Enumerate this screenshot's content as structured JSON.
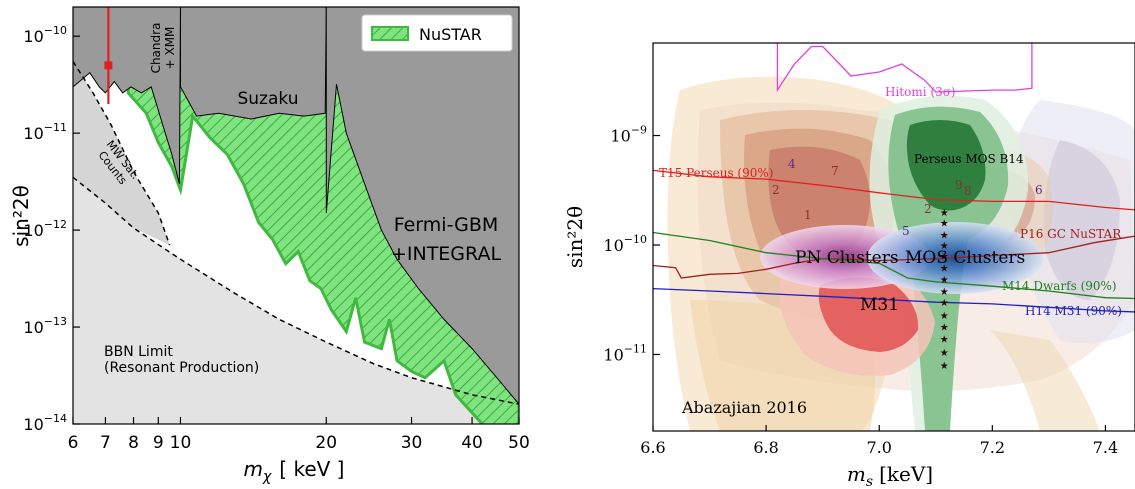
{
  "chart_data": [
    {
      "type": "area",
      "xscale": "log",
      "yscale": "log",
      "xlim": [
        6,
        50
      ],
      "ylim": [
        1e-14,
        2e-10
      ],
      "xlabel_symbol": "m",
      "xlabel_sub": "χ",
      "xlabel_unit": "[ keV ]",
      "ylabel": "sin²2θ",
      "x_ticks": [
        6,
        7,
        8,
        9,
        10,
        20,
        30,
        40,
        50
      ],
      "x_tick_labels": [
        "6",
        "7",
        "8",
        "9",
        "10",
        "20",
        "30",
        "40",
        "50"
      ],
      "y_ticks": [
        1e-14,
        1e-13,
        1e-12,
        1e-11,
        1e-10
      ],
      "y_tick_exps": [
        "−14",
        "−13",
        "−12",
        "−11",
        "−10"
      ],
      "y_tick_base": "10",
      "legend": [
        {
          "name": "NuSTAR",
          "color": "#7fe47f",
          "hatch": true
        }
      ],
      "legend_position": "top-right",
      "region_labels": {
        "suzaku": "Suzaku",
        "fermi_line1": "Fermi-GBM",
        "fermi_line2": "+INTEGRAL",
        "chandra_line1": "Chandra",
        "chandra_line2": "+ XMM",
        "mw_line1": "MW Sat.",
        "mw_line2": "Counts",
        "bbn_line1": "BBN Limit",
        "bbn_line2": "(Resonant Production)"
      },
      "xray_excluded_boundary": [
        [
          6,
          3e-11
        ],
        [
          6.5,
          4.2e-11
        ],
        [
          6.8,
          3e-11
        ],
        [
          7.0,
          2.6e-11
        ],
        [
          7.3,
          3.4e-11
        ],
        [
          7.6,
          2.6e-11
        ],
        [
          7.9,
          3e-11
        ],
        [
          8.3,
          2.6e-11
        ],
        [
          8.7,
          3e-11
        ],
        [
          9.2,
          1.2e-11
        ],
        [
          9.6,
          6e-12
        ],
        [
          9.95,
          3e-12
        ],
        [
          10.0,
          2e-10
        ]
      ],
      "suzaku_boundary": [
        [
          10.0,
          3e-11
        ],
        [
          10.8,
          1.5e-11
        ],
        [
          12,
          1.6e-11
        ],
        [
          14,
          1.4e-11
        ],
        [
          16,
          1.6e-11
        ],
        [
          18,
          1.5e-11
        ],
        [
          19.9,
          1.6e-11
        ],
        [
          20.0,
          2e-10
        ]
      ],
      "fermi_boundary": [
        [
          20.0,
          1.5e-12
        ],
        [
          21,
          3.2e-11
        ],
        [
          22,
          1e-11
        ],
        [
          24,
          3e-12
        ],
        [
          26,
          1e-12
        ],
        [
          28,
          5e-13
        ],
        [
          31,
          2.5e-13
        ],
        [
          35,
          1.2e-13
        ],
        [
          40,
          6e-14
        ],
        [
          45,
          3e-14
        ],
        [
          50,
          1.6e-14
        ]
      ],
      "nustar_boundary": [
        [
          7.8,
          2.6e-11
        ],
        [
          8.5,
          1.6e-11
        ],
        [
          9,
          8e-12
        ],
        [
          9.6,
          4.5e-12
        ],
        [
          10.0,
          2.6e-12
        ],
        [
          10.6,
          1.5e-11
        ],
        [
          11.5,
          9e-12
        ],
        [
          12.5,
          6e-12
        ],
        [
          13.5,
          3e-12
        ],
        [
          14.5,
          1.2e-12
        ],
        [
          15.5,
          8e-13
        ],
        [
          16.5,
          4.5e-13
        ],
        [
          17.5,
          6e-13
        ],
        [
          18.5,
          3e-13
        ],
        [
          19.5,
          2.5e-13
        ],
        [
          20.5,
          1.5e-13
        ],
        [
          22,
          9e-14
        ],
        [
          23,
          2e-13
        ],
        [
          24,
          7e-14
        ],
        [
          26,
          6e-14
        ],
        [
          27,
          1.2e-13
        ],
        [
          28,
          4.5e-14
        ],
        [
          30,
          3.5e-14
        ],
        [
          32,
          3e-14
        ],
        [
          35,
          4.5e-14
        ],
        [
          37,
          2e-14
        ],
        [
          39,
          1.5e-14
        ],
        [
          42,
          1e-14
        ]
      ],
      "mw_satellite_boundary": [
        [
          6,
          5.5e-11
        ],
        [
          6.6,
          2.6e-11
        ],
        [
          7.2,
          1.2e-11
        ],
        [
          8,
          4e-12
        ],
        [
          9,
          1.5e-12
        ],
        [
          9.5,
          7e-13
        ]
      ],
      "bbn_limit": [
        [
          6,
          3.5e-12
        ],
        [
          7,
          1.9e-12
        ],
        [
          8,
          1.05e-12
        ],
        [
          10,
          5e-13
        ],
        [
          13,
          2.2e-13
        ],
        [
          16,
          1.2e-13
        ],
        [
          20,
          7e-14
        ],
        [
          25,
          4.2e-14
        ],
        [
          30,
          3e-14
        ],
        [
          40,
          2e-14
        ],
        [
          50,
          1.6e-14
        ]
      ],
      "signal_point": {
        "x": 7.1,
        "y": 5e-11,
        "y_low": 2e-11,
        "y_high": 2e-10
      }
    },
    {
      "type": "area",
      "xscale": "linear",
      "yscale": "log",
      "xlim": [
        6.6,
        7.5
      ],
      "ylim": [
        2e-12,
        7e-09
      ],
      "xlabel_symbol": "m",
      "xlabel_sub": "s",
      "xlabel_unit": "[keV]",
      "ylabel": "sin²2θ",
      "x_ticks": [
        6.6,
        6.8,
        7.0,
        7.2,
        7.4
      ],
      "x_tick_labels": [
        "6.6",
        "6.8",
        "7.0",
        "7.2",
        "7.4"
      ],
      "y_ticks": [
        1e-11,
        1e-10,
        1e-09
      ],
      "y_tick_exps": [
        "−11",
        "−10",
        "−9"
      ],
      "y_tick_base": "10",
      "limit_lines": [
        {
          "name": "Hitomi (3σ)",
          "color": "#e040e0",
          "points": [
            [
              6.82,
              7e-09
            ],
            [
              6.82,
              2.6e-09
            ],
            [
              6.85,
              4.5e-09
            ],
            [
              6.88,
              6.5e-09
            ],
            [
              6.9,
              6.5e-09
            ],
            [
              6.93,
              4.5e-09
            ],
            [
              6.95,
              3.5e-09
            ],
            [
              7.0,
              3.8e-09
            ],
            [
              7.04,
              4.5e-09
            ],
            [
              7.08,
              3.2e-09
            ],
            [
              7.1,
              2.5e-09
            ],
            [
              7.2,
              2.6e-09
            ],
            [
              7.24,
              2.6e-09
            ],
            [
              7.27,
              2.7e-09
            ],
            [
              7.27,
              7e-09
            ]
          ]
        },
        {
          "name": "T15 Perseus (90%)",
          "color": "#e02020",
          "points": [
            [
              6.6,
              4.8e-10
            ],
            [
              6.7,
              4.2e-10
            ],
            [
              6.8,
              4e-10
            ],
            [
              6.9,
              3.5e-10
            ],
            [
              7.0,
              3e-10
            ],
            [
              7.1,
              2.6e-10
            ],
            [
              7.2,
              2.5e-10
            ],
            [
              7.3,
              2.5e-10
            ],
            [
              7.4,
              2.2e-10
            ],
            [
              7.5,
              2e-10
            ]
          ]
        },
        {
          "name": "P16 GC NuSTAR",
          "color": "#a02020",
          "points": [
            [
              6.6,
              6.5e-11
            ],
            [
              6.64,
              6.2e-11
            ],
            [
              6.65,
              5e-11
            ],
            [
              6.7,
              5.4e-11
            ],
            [
              6.75,
              5.5e-11
            ],
            [
              6.8,
              6e-11
            ],
            [
              6.85,
              6.8e-11
            ],
            [
              6.9,
              7.5e-11
            ],
            [
              6.95,
              7.4e-11
            ],
            [
              7.0,
              7.2e-11
            ],
            [
              7.1,
              7.5e-11
            ],
            [
              7.2,
              8e-11
            ],
            [
              7.3,
              8.5e-11
            ],
            [
              7.38,
              1.05e-10
            ],
            [
              7.45,
              1.2e-10
            ],
            [
              7.5,
              1.3e-10
            ]
          ]
        },
        {
          "name": "M14 Dwarfs (90%)",
          "color": "#208020",
          "points": [
            [
              6.6,
              1.3e-10
            ],
            [
              6.7,
              1.1e-10
            ],
            [
              6.8,
              8.5e-11
            ],
            [
              6.9,
              7.5e-11
            ],
            [
              7.0,
              6.8e-11
            ],
            [
              7.05,
              5e-11
            ],
            [
              7.1,
              4.6e-11
            ],
            [
              7.2,
              4.2e-11
            ],
            [
              7.3,
              3.8e-11
            ],
            [
              7.4,
              3.3e-11
            ],
            [
              7.5,
              3.2e-11
            ]
          ]
        },
        {
          "name": "H14 M31 (90%)",
          "color": "#2020c0",
          "points": [
            [
              6.6,
              4e-11
            ],
            [
              6.7,
              3.8e-11
            ],
            [
              6.8,
              3.6e-11
            ],
            [
              6.9,
              3.4e-11
            ],
            [
              7.0,
              3.2e-11
            ],
            [
              7.1,
              3e-11
            ],
            [
              7.2,
              2.9e-11
            ],
            [
              7.3,
              2.7e-11
            ],
            [
              7.4,
              2.5e-11
            ],
            [
              7.5,
              2.4e-11
            ]
          ]
        }
      ],
      "region_labels": {
        "pn": "PN Clusters",
        "mos": "MOS Clusters",
        "m31": "M31",
        "perseus": "Perseus MOS B14",
        "abazajian": "Abazajian 2016"
      },
      "numbered_contours": [
        "1",
        "2",
        "2",
        "4",
        "5",
        "6",
        "7",
        "8",
        "9"
      ],
      "stacked_star_points": {
        "x": 7.115,
        "y": [
          2e-10,
          1.6e-10,
          1.25e-10,
          1e-10,
          8e-11,
          6.2e-11,
          4.9e-11,
          3.8e-11,
          3e-11,
          2.3e-11,
          1.8e-11,
          1.4e-11,
          1.05e-11,
          8e-12
        ]
      }
    }
  ]
}
